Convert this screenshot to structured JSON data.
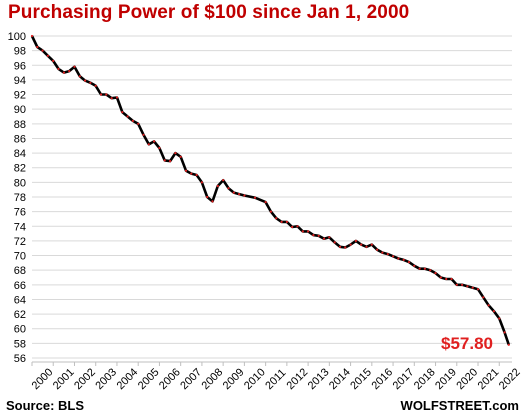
{
  "chart_data": {
    "type": "line",
    "title": "Purchasing  Power of $100 since Jan 1, 2000",
    "xlabel": "",
    "ylabel": "",
    "ylim": [
      56,
      100
    ],
    "yticks": [
      56,
      58,
      60,
      62,
      64,
      66,
      68,
      70,
      72,
      74,
      76,
      78,
      80,
      82,
      84,
      86,
      88,
      90,
      92,
      94,
      96,
      98,
      100
    ],
    "xlim": [
      2000,
      2022.6
    ],
    "xticks": [
      "2000",
      "2001",
      "2002",
      "2003",
      "2004",
      "2005",
      "2006",
      "2007",
      "2008",
      "2009",
      "2010",
      "2011",
      "2012",
      "2013",
      "2014",
      "2015",
      "2016",
      "2017",
      "2018",
      "2019",
      "2020",
      "2021",
      "2022"
    ],
    "grid": "horizontal",
    "line_color": "#000000",
    "marker_color": "#e02020",
    "end_label": "$57.80",
    "series": [
      {
        "x": [
          2000.0,
          2000.25,
          2000.5,
          2000.75,
          2001.0,
          2001.25,
          2001.5,
          2001.75,
          2002.0,
          2002.25,
          2002.5,
          2002.75,
          2003.0,
          2003.25,
          2003.5,
          2003.75,
          2004.0,
          2004.25,
          2004.5,
          2004.75,
          2005.0,
          2005.25,
          2005.5,
          2005.75,
          2006.0,
          2006.25,
          2006.5,
          2006.75,
          2007.0,
          2007.25,
          2007.5,
          2007.75,
          2008.0,
          2008.25,
          2008.5,
          2008.75,
          2009.0,
          2009.25,
          2009.5,
          2009.75,
          2010.0,
          2010.5,
          2011.0,
          2011.25,
          2011.5,
          2011.75,
          2012.0,
          2012.25,
          2012.5,
          2012.75,
          2013.0,
          2013.25,
          2013.5,
          2013.75,
          2014.0,
          2014.25,
          2014.5,
          2014.75,
          2015.0,
          2015.25,
          2015.5,
          2015.75,
          2016.0,
          2016.25,
          2016.5,
          2016.75,
          2017.0,
          2017.25,
          2017.5,
          2017.75,
          2018.0,
          2018.25,
          2018.5,
          2018.75,
          2019.0,
          2019.25,
          2019.5,
          2019.75,
          2020.0,
          2020.25,
          2020.5,
          2020.75,
          2021.0,
          2021.25,
          2021.5,
          2021.75,
          2022.0,
          2022.25,
          2022.45
        ],
        "y": [
          100.0,
          98.5,
          98.0,
          97.3,
          96.6,
          95.5,
          95.0,
          95.2,
          95.8,
          94.5,
          93.9,
          93.6,
          93.2,
          92.0,
          92.0,
          91.5,
          91.6,
          89.6,
          89.0,
          88.4,
          88.0,
          86.5,
          85.2,
          85.6,
          84.7,
          83.0,
          82.9,
          84.0,
          83.5,
          81.6,
          81.2,
          81.0,
          80.0,
          78.0,
          77.4,
          79.5,
          80.3,
          79.2,
          78.6,
          78.4,
          78.2,
          77.9,
          77.3,
          76.0,
          75.1,
          74.6,
          74.6,
          73.9,
          74.0,
          73.3,
          73.3,
          72.8,
          72.7,
          72.3,
          72.5,
          71.8,
          71.2,
          71.1,
          71.5,
          72.0,
          71.5,
          71.2,
          71.5,
          70.8,
          70.4,
          70.2,
          69.9,
          69.6,
          69.4,
          69.1,
          68.6,
          68.2,
          68.2,
          68.0,
          67.6,
          67.0,
          66.8,
          66.8,
          66.0,
          66.0,
          65.8,
          65.6,
          65.4,
          64.3,
          63.2,
          62.4,
          61.4,
          59.5,
          57.8
        ]
      }
    ]
  },
  "footer": {
    "source": "Source: BLS",
    "brand": "WOLFSTREET.com"
  }
}
